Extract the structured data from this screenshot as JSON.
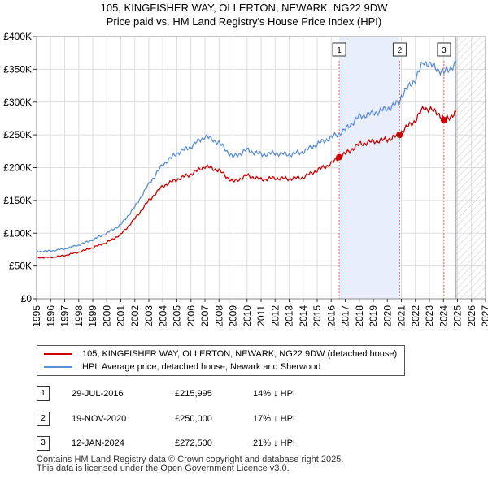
{
  "title_line1": "105, KINGFISHER WAY, OLLERTON, NEWARK, NG22 9DW",
  "title_line2": "Price paid vs. HM Land Registry's House Price Index (HPI)",
  "colors": {
    "price_paid": "#cc0000",
    "hpi": "#5b8ed6",
    "shade": "#e8eefa",
    "marker_line": "#ee6666"
  },
  "chart_data": {
    "type": "line",
    "x_ticks": [
      1995,
      1996,
      1997,
      1998,
      1999,
      2000,
      2001,
      2002,
      2003,
      2004,
      2005,
      2006,
      2007,
      2008,
      2009,
      2010,
      2011,
      2012,
      2013,
      2014,
      2015,
      2016,
      2017,
      2018,
      2019,
      2020,
      2021,
      2022,
      2023,
      2024,
      2025,
      2026,
      2027
    ],
    "y_ticks": [
      0,
      50000,
      100000,
      150000,
      200000,
      250000,
      300000,
      350000,
      400000
    ],
    "y_tick_labels": [
      "£0",
      "£50K",
      "£100K",
      "£150K",
      "£200K",
      "£250K",
      "£300K",
      "£350K",
      "£400K"
    ],
    "xlim": [
      1995,
      2027
    ],
    "ylim": [
      0,
      400000
    ],
    "data_end": 2024.9,
    "shaded_range": [
      2016.57,
      2020.88
    ],
    "series": [
      {
        "name": "105, KINGFISHER WAY, OLLERTON, NEWARK, NG22 9DW (detached house)",
        "points": [
          [
            1995,
            63000
          ],
          [
            1996,
            63000
          ],
          [
            1997,
            66000
          ],
          [
            1998,
            71000
          ],
          [
            1999,
            78000
          ],
          [
            2000,
            86000
          ],
          [
            2001,
            98000
          ],
          [
            2002,
            122000
          ],
          [
            2003,
            150000
          ],
          [
            2004,
            172000
          ],
          [
            2005,
            182000
          ],
          [
            2006,
            190000
          ],
          [
            2007,
            202000
          ],
          [
            2008,
            196000
          ],
          [
            2009,
            178000
          ],
          [
            2010,
            188000
          ],
          [
            2011,
            182000
          ],
          [
            2012,
            184000
          ],
          [
            2013,
            183000
          ],
          [
            2014,
            185000
          ],
          [
            2015,
            196000
          ],
          [
            2016,
            206000
          ],
          [
            2016.57,
            215995
          ],
          [
            2017,
            221000
          ],
          [
            2018,
            236000
          ],
          [
            2019,
            240000
          ],
          [
            2020,
            243000
          ],
          [
            2020.88,
            250000
          ],
          [
            2021,
            255000
          ],
          [
            2022,
            272000
          ],
          [
            2022.6,
            292000
          ],
          [
            2023,
            289000
          ],
          [
            2023.6,
            284000
          ],
          [
            2024.04,
            272500
          ],
          [
            2024.5,
            278000
          ],
          [
            2024.9,
            285000
          ]
        ]
      },
      {
        "name": "HPI: Average price, detached house, Newark and Sherwood",
        "points": [
          [
            1995,
            72000
          ],
          [
            1996,
            73000
          ],
          [
            1997,
            76000
          ],
          [
            1998,
            82000
          ],
          [
            1999,
            90000
          ],
          [
            2000,
            100000
          ],
          [
            2001,
            113000
          ],
          [
            2002,
            140000
          ],
          [
            2003,
            175000
          ],
          [
            2004,
            205000
          ],
          [
            2005,
            222000
          ],
          [
            2006,
            232000
          ],
          [
            2007,
            248000
          ],
          [
            2008,
            238000
          ],
          [
            2009,
            216000
          ],
          [
            2010,
            227000
          ],
          [
            2011,
            220000
          ],
          [
            2012,
            222000
          ],
          [
            2013,
            220000
          ],
          [
            2014,
            224000
          ],
          [
            2015,
            236000
          ],
          [
            2016,
            246000
          ],
          [
            2016.57,
            252000
          ],
          [
            2017,
            258000
          ],
          [
            2018,
            278000
          ],
          [
            2019,
            283000
          ],
          [
            2020,
            290000
          ],
          [
            2020.88,
            300000
          ],
          [
            2021,
            310000
          ],
          [
            2022,
            335000
          ],
          [
            2022.6,
            362000
          ],
          [
            2023,
            358000
          ],
          [
            2023.6,
            350000
          ],
          [
            2024.04,
            345000
          ],
          [
            2024.5,
            352000
          ],
          [
            2024.9,
            360000
          ]
        ]
      }
    ],
    "sales": [
      {
        "label": "1",
        "year": 2016.57,
        "price": 215995
      },
      {
        "label": "2",
        "year": 2020.88,
        "price": 250000
      },
      {
        "label": "3",
        "year": 2024.04,
        "price": 272500
      }
    ]
  },
  "legend": {
    "price_paid": "105, KINGFISHER WAY, OLLERTON, NEWARK, NG22 9DW (detached house)",
    "hpi": "HPI: Average price, detached house, Newark and Sherwood"
  },
  "table": [
    {
      "num": "1",
      "date": "29-JUL-2016",
      "price": "£215,995",
      "hpi": "14% ↓ HPI"
    },
    {
      "num": "2",
      "date": "19-NOV-2020",
      "price": "£250,000",
      "hpi": "17% ↓ HPI"
    },
    {
      "num": "3",
      "date": "12-JAN-2024",
      "price": "£272,500",
      "hpi": "21% ↓ HPI"
    }
  ],
  "footer_line1": "Contains HM Land Registry data © Crown copyright and database right 2025.",
  "footer_line2": "This data is licensed under the Open Government Licence v3.0."
}
